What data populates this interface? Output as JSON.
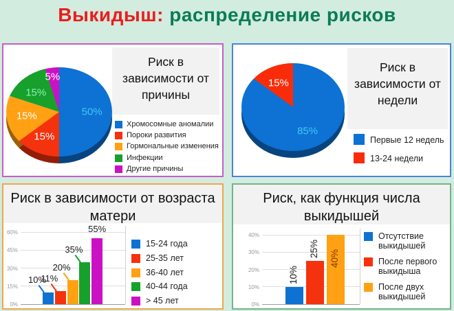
{
  "header": {
    "title_red": "Выкидыш:",
    "title_rest": " распределение рисков",
    "red_color": "#ea1d1d",
    "green_color": "#0b7b58",
    "background": "#d2ecdf"
  },
  "panels": [
    {
      "name": "cause",
      "border_color": "#cb5bc6"
    },
    {
      "name": "week",
      "border_color": "#4a82d8"
    },
    {
      "name": "age",
      "border_color": "#f2a64a"
    },
    {
      "name": "count",
      "border_color": "#74b389"
    }
  ],
  "chart_data": [
    {
      "type": "pie",
      "title": "Риск в зависимости от причины",
      "legend_position": "right-bottom",
      "slices": [
        {
          "label": "Хромосомные аномалии",
          "value": 50,
          "color": "#0e71d4",
          "label_color": "#3fc9f5"
        },
        {
          "label": "Пороки развития",
          "value": 15,
          "color": "#f5320e",
          "label_color": "#ffffff"
        },
        {
          "label": "Гормональные изменения",
          "value": 15,
          "color": "#ffa113",
          "label_color": "#ffffff"
        },
        {
          "label": "Инфекции",
          "value": 15,
          "color": "#17a02c",
          "label_color": "#8df2ae"
        },
        {
          "label": "Другие причины",
          "value": 5,
          "color": "#cc11c4",
          "label_color": "#ffffff"
        }
      ]
    },
    {
      "type": "pie",
      "title": "Риск в зависимости от недели",
      "legend_position": "right-bottom",
      "slices": [
        {
          "label": "Первые 12 недель",
          "value": 85,
          "color": "#0e71d4",
          "label_color": "#3fc9f5"
        },
        {
          "label": "13-24 недели",
          "value": 15,
          "color": "#f92c0a",
          "label_color": "#ffffff"
        }
      ]
    },
    {
      "type": "bar",
      "title": "Риск в зависимости от возраста матери",
      "categories": [
        "15-24 года",
        "25-35 лет",
        "36-40 лет",
        "40-44 года",
        "> 45 лет"
      ],
      "values": [
        10,
        11,
        20,
        35,
        55
      ],
      "colors": [
        "#0e71d4",
        "#f5320e",
        "#ffa113",
        "#17a02c",
        "#cc11c4"
      ],
      "ylim": [
        0,
        60
      ],
      "yticks": [
        {
          "value": 0,
          "label": "0%"
        },
        {
          "value": 15,
          "label": "15%"
        },
        {
          "value": 30,
          "label": "30%"
        },
        {
          "value": 45,
          "label": "45%"
        },
        {
          "value": 60,
          "label": "60%"
        }
      ],
      "grid": true,
      "label_style": "callout",
      "value_labels": [
        {
          "text": "10%",
          "leader": true
        },
        {
          "text": "11%",
          "leader": true
        },
        {
          "text": "20%",
          "leader": true
        },
        {
          "text": "35%",
          "leader": true
        },
        {
          "text": "55%",
          "leader": false
        }
      ],
      "legend_position": "right"
    },
    {
      "type": "bar",
      "title": "Риск, как функция числа выкидышей",
      "categories": [
        "Отсутствие выкидышей",
        "После первого выкидыша",
        "После двух выкидышей"
      ],
      "values": [
        10,
        25,
        40
      ],
      "colors": [
        "#0e71d4",
        "#f5320e",
        "#ffa113"
      ],
      "ylim": [
        0,
        40
      ],
      "yticks": [
        {
          "value": 0,
          "label": "0%"
        },
        {
          "value": 10,
          "label": "10%"
        },
        {
          "value": 20,
          "label": "20%"
        },
        {
          "value": 30,
          "label": "30%"
        },
        {
          "value": 40,
          "label": "40%"
        }
      ],
      "grid": true,
      "label_style": "rotated",
      "value_labels": [
        {
          "text": "10%",
          "inside": false,
          "color": "#1a1a1a"
        },
        {
          "text": "25%",
          "inside": false,
          "color": "#1a1a1a"
        },
        {
          "text": "40%",
          "inside": true,
          "color": "#8a3800"
        }
      ],
      "legend_position": "right"
    }
  ]
}
